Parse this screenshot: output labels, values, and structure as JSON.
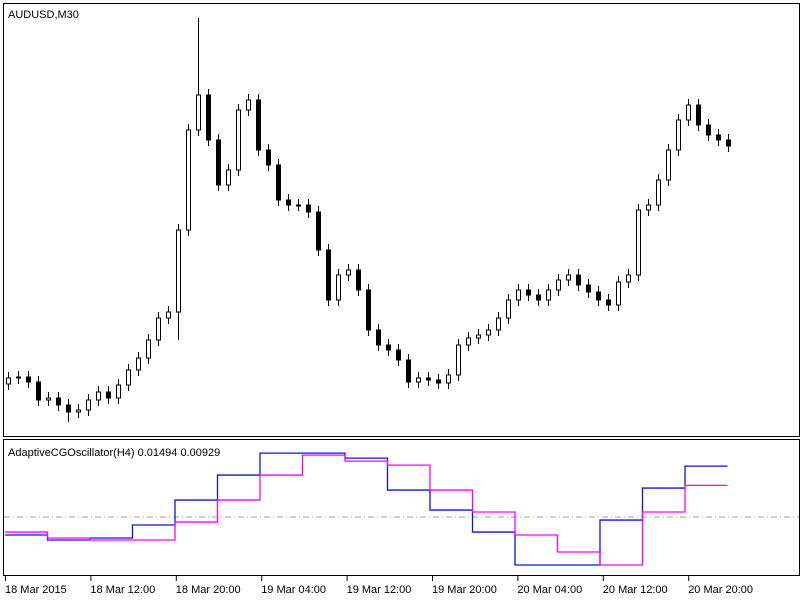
{
  "time_axis": [
    "18 Mar 2015",
    "18 Mar 12:00",
    "18 Mar 20:00",
    "19 Mar 04:00",
    "19 Mar 12:00",
    "19 Mar 20:00",
    "20 Mar 04:00",
    "20 Mar 12:00",
    "20 Mar 20:00"
  ],
  "chart_data": [
    {
      "type": "candlestick",
      "title": "AUDUSD,M30",
      "up_color": "#ffffff",
      "down_color": "#000000",
      "wick_color": "#000000",
      "ylim": [
        0.7545,
        0.7755
      ],
      "open": [
        0.7568,
        0.7571,
        0.75715,
        0.7569,
        0.756,
        0.7561,
        0.75575,
        0.7554,
        0.7555,
        0.756,
        0.7564,
        0.7561,
        0.75675,
        0.7575,
        0.7581,
        0.759,
        0.7601,
        0.7604,
        0.7645,
        0.7695,
        0.77125,
        0.769,
        0.76675,
        0.7675,
        0.7705,
        0.771,
        0.7685,
        0.76775,
        0.766,
        0.76575,
        0.76575,
        0.7654,
        0.7635,
        0.761,
        0.76225,
        0.7625,
        0.7615,
        0.7595,
        0.75875,
        0.7585,
        0.758,
        0.7569,
        0.7571,
        0.757,
        0.75685,
        0.75725,
        0.75875,
        0.7591,
        0.75925,
        0.7595,
        0.7601,
        0.761,
        0.7615,
        0.76125,
        0.761,
        0.7615,
        0.762,
        0.76225,
        0.76175,
        0.7614,
        0.761,
        0.76075,
        0.7619,
        0.76225,
        0.7655,
        0.76575,
        0.767,
        0.7685,
        0.77,
        0.77075,
        0.76975,
        0.76925,
        0.769
      ],
      "high": [
        0.7574,
        0.75745,
        0.75745,
        0.7572,
        0.7564,
        0.7564,
        0.75605,
        0.7558,
        0.7563,
        0.7567,
        0.7567,
        0.75705,
        0.7578,
        0.7584,
        0.7593,
        0.7604,
        0.7607,
        0.7648,
        0.7698,
        0.7751,
        0.77155,
        0.7693,
        0.7678,
        0.7708,
        0.7713,
        0.7713,
        0.7688,
        0.76805,
        0.7663,
        0.76605,
        0.76605,
        0.7657,
        0.7638,
        0.76255,
        0.7628,
        0.7628,
        0.7618,
        0.7598,
        0.75905,
        0.7588,
        0.7583,
        0.7574,
        0.7574,
        0.7573,
        0.75755,
        0.75905,
        0.7594,
        0.75955,
        0.7598,
        0.7604,
        0.7613,
        0.7618,
        0.7618,
        0.76155,
        0.7618,
        0.7623,
        0.76255,
        0.76255,
        0.76205,
        0.7617,
        0.7613,
        0.7622,
        0.76255,
        0.7658,
        0.76605,
        0.7673,
        0.7688,
        0.7703,
        0.77105,
        0.77105,
        0.77005,
        0.76955,
        0.7693
      ],
      "low": [
        0.7565,
        0.7568,
        0.7566,
        0.7557,
        0.7557,
        0.75545,
        0.7549,
        0.7551,
        0.7552,
        0.7557,
        0.7558,
        0.7558,
        0.75645,
        0.7572,
        0.7578,
        0.7587,
        0.7598,
        0.759,
        0.7642,
        0.7692,
        0.7687,
        0.76645,
        0.76645,
        0.7672,
        0.7702,
        0.7682,
        0.76745,
        0.7657,
        0.76545,
        0.76545,
        0.7651,
        0.7632,
        0.7607,
        0.7607,
        0.76195,
        0.7612,
        0.7592,
        0.75845,
        0.7582,
        0.7577,
        0.7566,
        0.7566,
        0.7567,
        0.75655,
        0.75655,
        0.75695,
        0.75845,
        0.7588,
        0.75895,
        0.7592,
        0.7598,
        0.7607,
        0.76095,
        0.7607,
        0.7607,
        0.7612,
        0.7617,
        0.76145,
        0.7611,
        0.7607,
        0.76045,
        0.76045,
        0.7616,
        0.76195,
        0.7652,
        0.76545,
        0.7667,
        0.7682,
        0.7697,
        0.76945,
        0.76895,
        0.7687,
        0.7684
      ],
      "close": [
        0.7571,
        0.75715,
        0.7569,
        0.756,
        0.7561,
        0.75575,
        0.7554,
        0.7555,
        0.756,
        0.7564,
        0.7561,
        0.75675,
        0.7575,
        0.7581,
        0.759,
        0.7601,
        0.7604,
        0.7645,
        0.7695,
        0.77125,
        0.769,
        0.76675,
        0.7675,
        0.7705,
        0.771,
        0.7685,
        0.76775,
        0.766,
        0.76575,
        0.76575,
        0.7654,
        0.7635,
        0.761,
        0.76225,
        0.7625,
        0.7615,
        0.7595,
        0.75875,
        0.7585,
        0.758,
        0.7569,
        0.7571,
        0.757,
        0.75685,
        0.75725,
        0.75875,
        0.7591,
        0.75925,
        0.7595,
        0.7601,
        0.761,
        0.7615,
        0.76125,
        0.761,
        0.7615,
        0.762,
        0.76225,
        0.76175,
        0.7614,
        0.761,
        0.76075,
        0.7619,
        0.76225,
        0.7655,
        0.76575,
        0.767,
        0.7685,
        0.77,
        0.77075,
        0.76975,
        0.76925,
        0.769,
        0.7687
      ]
    },
    {
      "type": "step",
      "title": "AdaptiveCGOscillator(H4)",
      "ylim": [
        -0.017,
        0.0226
      ],
      "levels": [
        0
      ],
      "level_color": "#a0a0a0",
      "series": [
        {
          "color": "#1010e0",
          "values": [
            -0.00527,
            -0.00674,
            -0.00615,
            -0.00234,
            0.00498,
            0.01231,
            0.01875,
            0.01875,
            0.01729,
            0.00791,
            0.00205,
            -0.0044,
            -0.01406,
            -0.01406,
            -0.00088,
            0.0085,
            0.01494
          ]
        },
        {
          "color": "#ff00ff",
          "values": [
            -0.0044,
            -0.00615,
            -0.00674,
            -0.00674,
            -0.00147,
            0.00498,
            0.01231,
            0.01817,
            0.01641,
            0.01524,
            0.00791,
            0.00147,
            -0.00527,
            -0.01026,
            -0.01406,
            0.00147,
            0.00929
          ]
        }
      ]
    }
  ]
}
